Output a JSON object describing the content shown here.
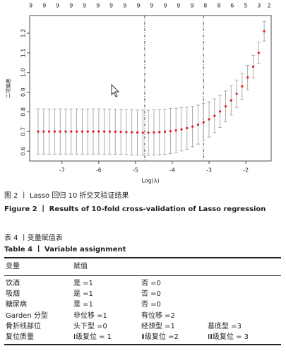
{
  "chart_data": {
    "type": "errorbar",
    "xlabel": "Log(λ)",
    "ylabel": "二项偏差",
    "x": [
      -7.65,
      -7.5,
      -7.35,
      -7.2,
      -7.05,
      -6.9,
      -6.75,
      -6.6,
      -6.45,
      -6.3,
      -6.15,
      -6.0,
      -5.85,
      -5.7,
      -5.55,
      -5.4,
      -5.25,
      -5.1,
      -4.95,
      -4.8,
      -4.65,
      -4.5,
      -4.35,
      -4.2,
      -4.05,
      -3.9,
      -3.75,
      -3.6,
      -3.45,
      -3.3,
      -3.15,
      -3.0,
      -2.85,
      -2.7,
      -2.55,
      -2.4,
      -2.25,
      -2.1,
      -1.95,
      -1.8,
      -1.65,
      -1.5
    ],
    "values": [
      0.7,
      0.7,
      0.7,
      0.7,
      0.7,
      0.7,
      0.7,
      0.7,
      0.7,
      0.7,
      0.7,
      0.7,
      0.7,
      0.7,
      0.699,
      0.698,
      0.697,
      0.696,
      0.695,
      0.694,
      0.694,
      0.695,
      0.697,
      0.699,
      0.702,
      0.706,
      0.711,
      0.717,
      0.725,
      0.735,
      0.747,
      0.762,
      0.78,
      0.802,
      0.828,
      0.858,
      0.892,
      0.93,
      0.975,
      1.03,
      1.1,
      1.21
    ],
    "errors": [
      0.115,
      0.115,
      0.115,
      0.115,
      0.115,
      0.115,
      0.115,
      0.115,
      0.115,
      0.115,
      0.115,
      0.115,
      0.115,
      0.115,
      0.115,
      0.115,
      0.115,
      0.115,
      0.115,
      0.115,
      0.115,
      0.115,
      0.115,
      0.115,
      0.115,
      0.113,
      0.11,
      0.107,
      0.103,
      0.099,
      0.095,
      0.09,
      0.086,
      0.082,
      0.078,
      0.074,
      0.07,
      0.066,
      0.062,
      0.058,
      0.054,
      0.05
    ],
    "color": "#e41a1c",
    "bar_color": "#999999",
    "xlim": [
      -7.88,
      -1.31
    ],
    "ylim": [
      0.55,
      1.29
    ],
    "xticks": [
      -7,
      -6,
      -5,
      -4,
      -3,
      -2
    ],
    "yticks": [
      0.6,
      0.7,
      0.8,
      0.9,
      {
        "value": 1,
        "label": "1.0"
      },
      1.1,
      1.2
    ],
    "top_ticks": [
      {
        "value": -7.85,
        "label": "9"
      },
      {
        "value": -7.48,
        "label": "9"
      },
      {
        "value": -7.12,
        "label": "9"
      },
      {
        "value": -6.75,
        "label": "9"
      },
      {
        "value": -6.39,
        "label": "9"
      },
      {
        "value": -6.02,
        "label": "9"
      },
      {
        "value": -5.66,
        "label": "9"
      },
      {
        "value": -5.29,
        "label": "9"
      },
      {
        "value": -4.92,
        "label": "9"
      },
      {
        "value": -4.56,
        "label": "9"
      },
      {
        "value": -4.19,
        "label": "9"
      },
      {
        "value": -3.83,
        "label": "9"
      },
      {
        "value": -3.46,
        "label": "9"
      },
      {
        "value": -3.1,
        "label": "8"
      },
      {
        "value": -2.73,
        "label": "8"
      },
      {
        "value": -2.37,
        "label": "6"
      },
      {
        "value": -2.0,
        "label": "5"
      },
      {
        "value": -1.64,
        "label": "3"
      },
      {
        "value": -1.37,
        "label": "2"
      }
    ],
    "vlines": [
      -4.75,
      -3.15
    ]
  },
  "figure": {
    "caption_cn": "图 2 丨 Lasso 回归 10 折交叉验证结果",
    "caption_en": "Figure 2  丨  Results of 10-fold cross-validation of Lasso regression"
  },
  "table": {
    "title_cn": "表 4 丨变量赋值表",
    "title_en": "Table 4  丨  Variable assignment",
    "header": [
      "变量",
      "赋值"
    ],
    "rows": [
      [
        "饮酒",
        "是 =1",
        "否 =0"
      ],
      [
        "吸烟",
        "是 =1",
        "否 =0"
      ],
      [
        "糖尿病",
        "是 =1",
        "否 =0"
      ],
      [
        "Garden 分型",
        "非位移 =1",
        "有位移 =2"
      ],
      [
        "骨折线部位",
        "头下型 =0",
        "经颈型 =1",
        "基底型 =3"
      ],
      [
        "复位质量",
        "Ⅰ级复位 = 1",
        "Ⅱ级复位 =2",
        "Ⅲ级复位 = 3"
      ]
    ]
  }
}
